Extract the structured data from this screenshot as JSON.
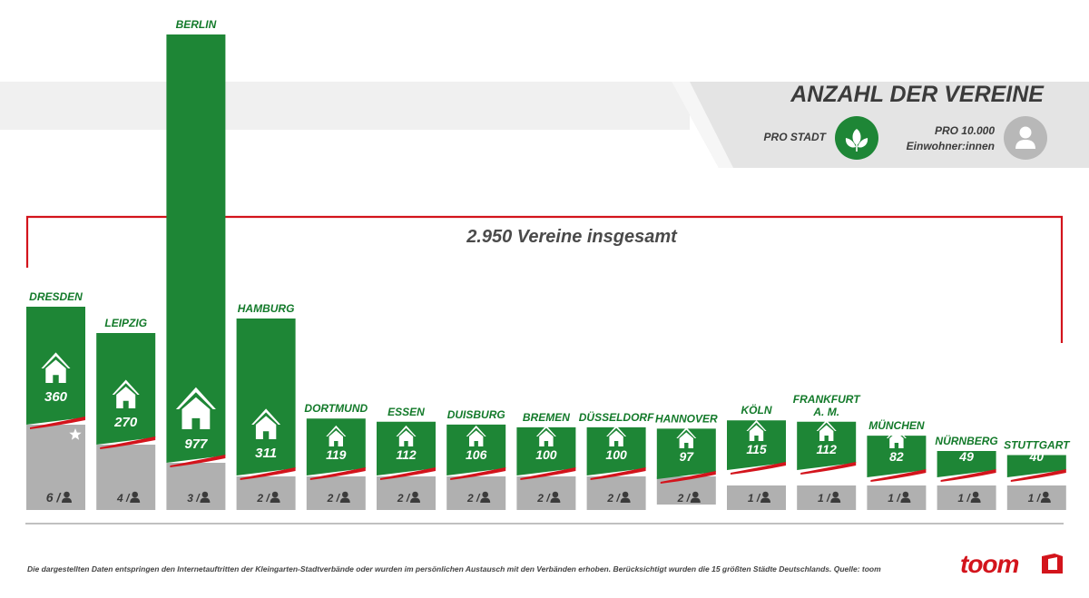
{
  "chart_data": {
    "type": "bar",
    "title": "ANZAHL DER VEREINE",
    "legend": {
      "per_city_label": "PRO STADT",
      "per_capita_line1": "PRO 10.000",
      "per_capita_line2": "Einwohner:innen"
    },
    "total_label": "2.950 Vereine insgesamt",
    "categories": [
      "DRESDEN",
      "LEIPZIG",
      "BERLIN",
      "HAMBURG",
      "DORTMUND",
      "ESSEN",
      "DUISBURG",
      "BREMEN",
      "DÜSSELDORF",
      "HANNOVER",
      "KÖLN",
      "FRANKFURT A. M.",
      "MÜNCHEN",
      "NÜRNBERG",
      "STUTTGART"
    ],
    "category_lines": [
      [
        "DRESDEN"
      ],
      [
        "LEIPZIG"
      ],
      [
        "BERLIN"
      ],
      [
        "HAMBURG"
      ],
      [
        "DORTMUND"
      ],
      [
        "ESSEN"
      ],
      [
        "DUISBURG"
      ],
      [
        "BREMEN"
      ],
      [
        "DÜSSELDORF"
      ],
      [
        "HANNOVER"
      ],
      [
        "KÖLN"
      ],
      [
        "FRANKFURT",
        "A. M."
      ],
      [
        "MÜNCHEN"
      ],
      [
        "NÜRNBERG"
      ],
      [
        "STUTTGART"
      ]
    ],
    "series": [
      {
        "name": "PRO STADT",
        "values": [
          360,
          270,
          977,
          311,
          119,
          112,
          106,
          100,
          100,
          97,
          115,
          112,
          82,
          49,
          40
        ]
      },
      {
        "name": "PRO 10.000 Einwohner:innen",
        "values": [
          6,
          4,
          3,
          2,
          2,
          2,
          2,
          2,
          2,
          2,
          1,
          1,
          1,
          1,
          1
        ]
      }
    ],
    "value_labels": [
      "360",
      "270",
      "977",
      "311",
      "119",
      "112",
      "106",
      "100",
      "100",
      "97",
      "115",
      "112",
      "82",
      "49",
      "40"
    ],
    "per_capita_labels": [
      "6 /",
      "4 /",
      "3 /",
      "2 /",
      "2 /",
      "2 /",
      "2 /",
      "2 /",
      "2 /",
      "2 /",
      "1 /",
      "1 /",
      "1 /",
      "1 /",
      "1 /"
    ],
    "highlight_star_category": "DRESDEN",
    "colors": {
      "green": "#1e8636",
      "grey": "#b0b0b0",
      "red": "#d3141c",
      "label_green": "#137a2a"
    }
  },
  "footnote": "Die dargestellten Daten entspringen den Internetauftritten der Kleingarten-Stadtverbände oder wurden im persönlichen Austausch mit den Verbänden erhoben. Berücksichtigt wurden die 15 größten Städte Deutschlands. Quelle: toom",
  "brand": {
    "name": "toom"
  }
}
